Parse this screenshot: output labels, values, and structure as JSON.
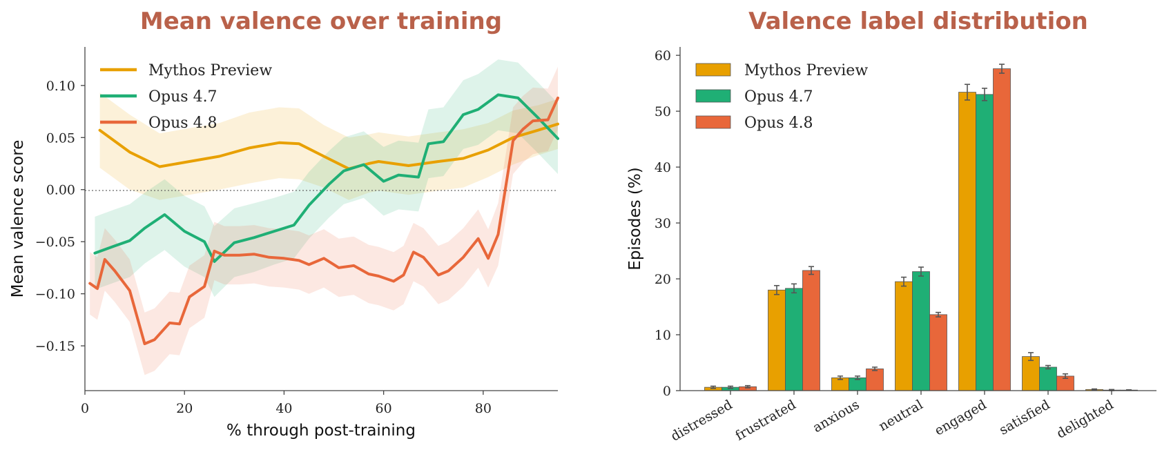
{
  "colors": {
    "Mythos Preview": "#e8a000",
    "Opus 4.7": "#1faf75",
    "Opus 4.8": "#e8673a",
    "title": "#b9614a"
  },
  "chart_data": [
    {
      "type": "line",
      "title": "Mean valence over training",
      "xlabel": "% through post-training",
      "ylabel": "Mean valence score",
      "xlim": [
        0,
        95
      ],
      "ylim": [
        -0.193,
        0.137
      ],
      "xticks": [
        "0",
        "20",
        "40",
        "60",
        "80"
      ],
      "yticks": [
        "0.10",
        "0.05",
        "0.00",
        "−0.05",
        "−0.10",
        "−0.15"
      ],
      "reference_line": 0.0,
      "legend_position": "upper-left",
      "series": [
        {
          "name": "Mythos Preview",
          "x": [
            3,
            9,
            15,
            21,
            27,
            33,
            39,
            43,
            48,
            53,
            57,
            59,
            65,
            71,
            76,
            81,
            86,
            91,
            95
          ],
          "y": [
            0.057,
            0.036,
            0.022,
            0.027,
            0.032,
            0.04,
            0.045,
            0.044,
            0.032,
            0.02,
            0.025,
            0.027,
            0.023,
            0.027,
            0.03,
            0.038,
            0.05,
            0.057,
            0.063
          ],
          "band": [
            0.036,
            0.036,
            0.032,
            0.032,
            0.032,
            0.034,
            0.034,
            0.034,
            0.03,
            0.03,
            0.028,
            0.028,
            0.028,
            0.028,
            0.028,
            0.026,
            0.026,
            0.024,
            0.024
          ]
        },
        {
          "name": "Opus 4.7",
          "x": [
            2,
            6,
            9,
            12,
            16,
            20,
            24,
            26,
            30,
            34,
            38,
            42,
            45,
            49,
            52,
            56,
            60,
            63,
            67,
            69,
            72,
            76,
            79,
            83,
            87,
            91,
            95
          ],
          "y": [
            -0.061,
            -0.054,
            -0.049,
            -0.037,
            -0.024,
            -0.04,
            -0.05,
            -0.069,
            -0.051,
            -0.046,
            -0.04,
            -0.034,
            -0.015,
            0.005,
            0.018,
            0.024,
            0.008,
            0.014,
            0.012,
            0.044,
            0.046,
            0.072,
            0.077,
            0.091,
            0.088,
            0.069,
            0.049
          ],
          "band": [
            0.035,
            0.035,
            0.035,
            0.034,
            0.034,
            0.034,
            0.034,
            0.034,
            0.033,
            0.033,
            0.032,
            0.032,
            0.032,
            0.032,
            0.032,
            0.032,
            0.033,
            0.033,
            0.033,
            0.033,
            0.033,
            0.033,
            0.034,
            0.034,
            0.034,
            0.034,
            0.034
          ]
        },
        {
          "name": "Opus 4.8",
          "x": [
            1,
            2.5,
            4,
            6,
            9,
            12,
            14,
            17,
            19,
            21,
            24,
            26,
            28,
            31,
            34,
            37,
            40,
            43,
            45,
            48,
            51,
            54,
            57,
            59,
            62,
            64,
            66,
            68,
            71,
            73,
            76,
            79,
            81,
            83,
            86,
            88,
            90,
            93,
            95
          ],
          "y": [
            -0.09,
            -0.095,
            -0.067,
            -0.078,
            -0.097,
            -0.148,
            -0.144,
            -0.128,
            -0.129,
            -0.103,
            -0.093,
            -0.059,
            -0.063,
            -0.063,
            -0.062,
            -0.065,
            -0.066,
            -0.068,
            -0.072,
            -0.066,
            -0.075,
            -0.073,
            -0.081,
            -0.083,
            -0.088,
            -0.082,
            -0.06,
            -0.065,
            -0.082,
            -0.078,
            -0.065,
            -0.047,
            -0.066,
            -0.043,
            0.047,
            0.058,
            0.066,
            0.067,
            0.088
          ],
          "band": [
            0.03,
            0.03,
            0.03,
            0.03,
            0.03,
            0.03,
            0.03,
            0.03,
            0.03,
            0.03,
            0.03,
            0.028,
            0.028,
            0.028,
            0.028,
            0.028,
            0.028,
            0.028,
            0.028,
            0.028,
            0.028,
            0.028,
            0.028,
            0.028,
            0.028,
            0.028,
            0.028,
            0.028,
            0.028,
            0.028,
            0.028,
            0.028,
            0.028,
            0.03,
            0.032,
            0.032,
            0.032,
            0.03,
            0.03
          ]
        }
      ]
    },
    {
      "type": "bar",
      "title": "Valence label distribution",
      "xlabel": "",
      "ylabel": "Episodes (%)",
      "ylim": [
        0,
        61.5
      ],
      "yticks": [
        "0",
        "10",
        "20",
        "30",
        "40",
        "50",
        "60"
      ],
      "legend_position": "upper-left",
      "categories": [
        "distressed",
        "frustrated",
        "anxious",
        "neutral",
        "engaged",
        "satisfied",
        "delighted"
      ],
      "series": [
        {
          "name": "Mythos Preview",
          "values": [
            0.6,
            18.0,
            2.3,
            19.5,
            53.4,
            6.1,
            0.2
          ],
          "errors": [
            0.2,
            0.8,
            0.3,
            0.8,
            1.4,
            0.7,
            0.1
          ]
        },
        {
          "name": "Opus 4.7",
          "values": [
            0.6,
            18.3,
            2.3,
            21.3,
            53.0,
            4.2,
            0.1
          ],
          "errors": [
            0.2,
            0.8,
            0.3,
            0.8,
            1.1,
            0.3,
            0.1
          ]
        },
        {
          "name": "Opus 4.8",
          "values": [
            0.7,
            21.5,
            3.9,
            13.6,
            57.6,
            2.6,
            0.1
          ],
          "errors": [
            0.2,
            0.7,
            0.3,
            0.4,
            0.8,
            0.4,
            0.05
          ]
        }
      ]
    }
  ]
}
